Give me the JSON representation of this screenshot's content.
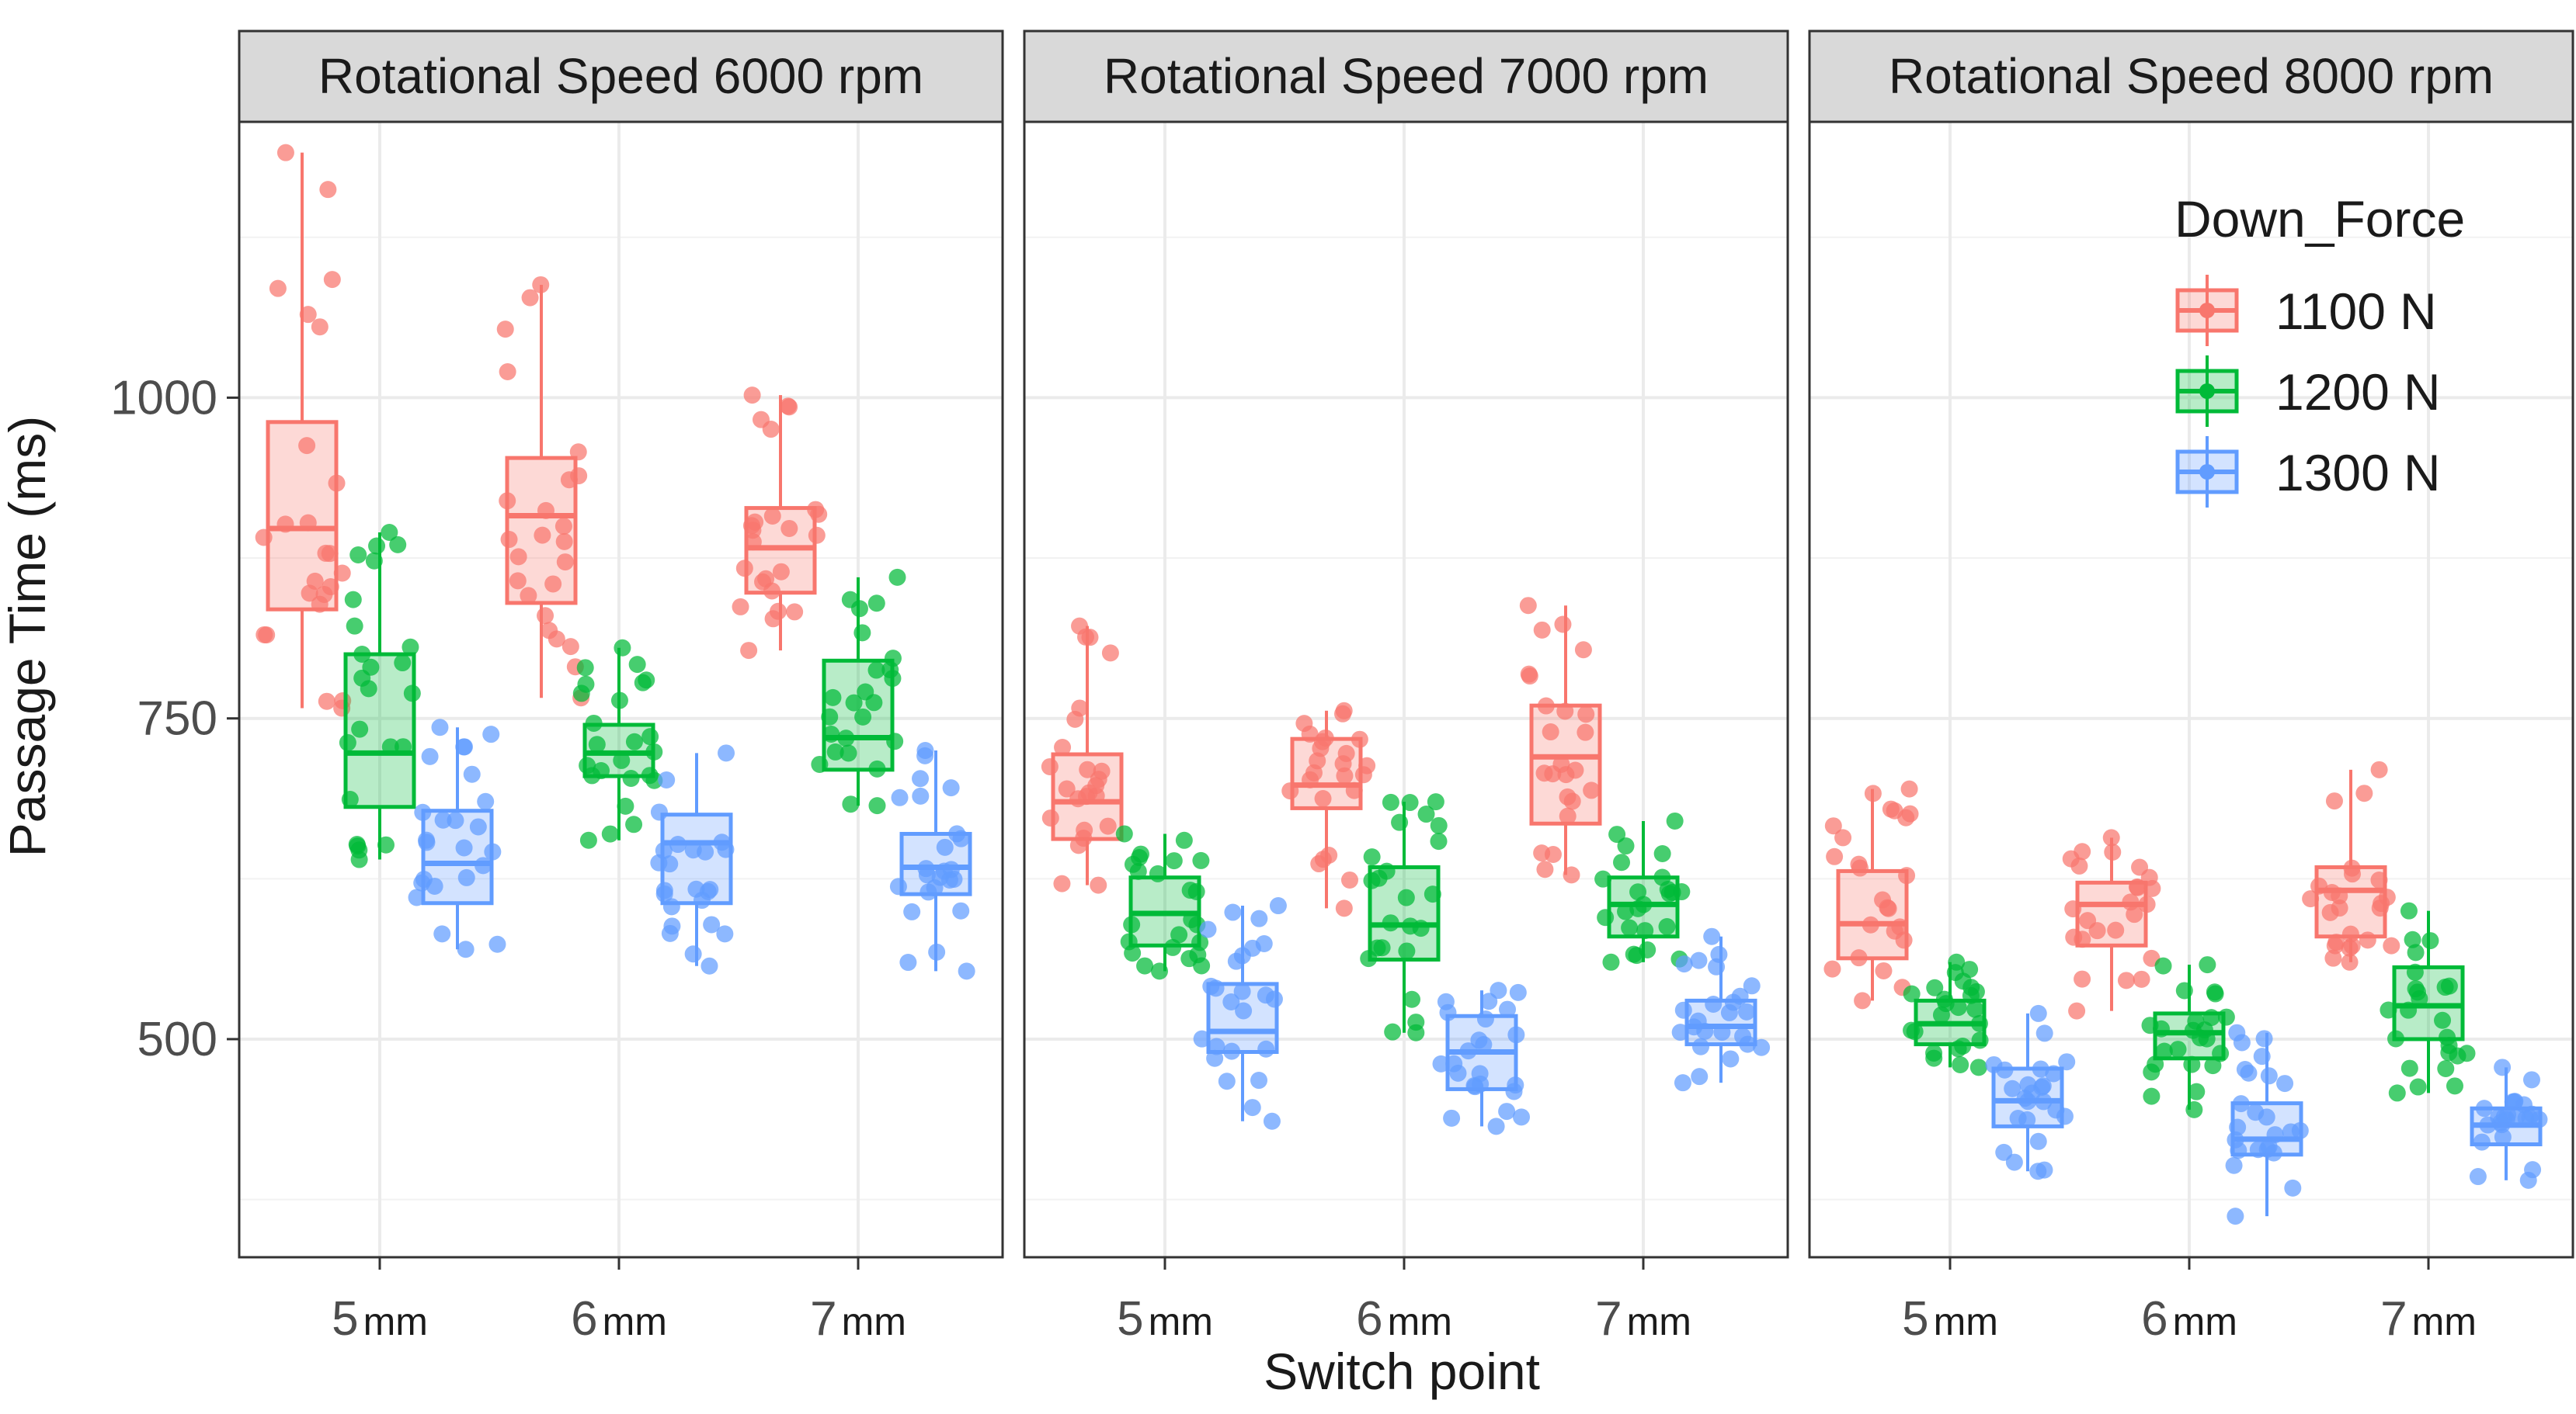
{
  "chart_data": {
    "type": "boxplot",
    "facet_variable": "Rotational Speed",
    "panels": [
      {
        "strip": "Rotational Speed 6000 rpm",
        "groups": [
          {
            "switch_point": "5mm",
            "force": "1100 N",
            "min": 758,
            "q1": 835,
            "median": 898,
            "q3": 981,
            "max": 1191
          },
          {
            "switch_point": "5mm",
            "force": "1200 N",
            "min": 640,
            "q1": 681,
            "median": 723,
            "q3": 800,
            "max": 895
          },
          {
            "switch_point": "5mm",
            "force": "1300 N",
            "min": 570,
            "q1": 606,
            "median": 637,
            "q3": 678,
            "max": 743
          },
          {
            "switch_point": "6 mm",
            "force": "1100 N",
            "min": 766,
            "q1": 840,
            "median": 908,
            "q3": 953,
            "max": 1088
          },
          {
            "switch_point": "6 mm",
            "force": "1200 N",
            "min": 655,
            "q1": 705,
            "median": 723,
            "q3": 745,
            "max": 805
          },
          {
            "switch_point": "6 mm",
            "force": "1300 N",
            "min": 557,
            "q1": 606,
            "median": 653,
            "q3": 675,
            "max": 723
          },
          {
            "switch_point": "7 mm",
            "force": "1100 N",
            "min": 803,
            "q1": 848,
            "median": 883,
            "q3": 914,
            "max": 1002
          },
          {
            "switch_point": "7 mm",
            "force": "1200 N",
            "min": 682,
            "q1": 710,
            "median": 735,
            "q3": 795,
            "max": 860
          },
          {
            "switch_point": "7 mm",
            "force": "1300 N",
            "min": 553,
            "q1": 613,
            "median": 634,
            "q3": 660,
            "max": 725
          }
        ]
      },
      {
        "strip": "Rotational Speed 7000 rpm",
        "groups": [
          {
            "switch_point": "5 mm",
            "force": "1100 N",
            "min": 620,
            "q1": 656,
            "median": 685,
            "q3": 722,
            "max": 822
          },
          {
            "switch_point": "5 mm",
            "force": "1200 N",
            "min": 553,
            "q1": 573,
            "median": 598,
            "q3": 626,
            "max": 660
          },
          {
            "switch_point": "5 mm",
            "force": "1300 N",
            "min": 436,
            "q1": 490,
            "median": 506,
            "q3": 543,
            "max": 604
          },
          {
            "switch_point": "6 mm",
            "force": "1100 N",
            "min": 602,
            "q1": 680,
            "median": 698,
            "q3": 734,
            "max": 756
          },
          {
            "switch_point": "6 mm",
            "force": "1200 N",
            "min": 505,
            "q1": 562,
            "median": 589,
            "q3": 634,
            "max": 685
          },
          {
            "switch_point": "6 mm",
            "force": "1300 N",
            "min": 432,
            "q1": 461,
            "median": 490,
            "q3": 518,
            "max": 538
          },
          {
            "switch_point": "7mm",
            "force": "1100 N",
            "min": 628,
            "q1": 668,
            "median": 720,
            "q3": 760,
            "max": 838
          },
          {
            "switch_point": "7mm",
            "force": "1200 N",
            "min": 560,
            "q1": 580,
            "median": 605,
            "q3": 626,
            "max": 670
          },
          {
            "switch_point": "7mm",
            "force": "1300 N",
            "min": 466,
            "q1": 496,
            "median": 510,
            "q3": 530,
            "max": 580
          }
        ]
      },
      {
        "strip": "Rotational Speed 8000 rpm",
        "groups": [
          {
            "switch_point": "5mm",
            "force": "1100 N",
            "min": 530,
            "q1": 563,
            "median": 590,
            "q3": 631,
            "max": 695
          },
          {
            "switch_point": "5mm",
            "force": "1200 N",
            "min": 478,
            "q1": 496,
            "median": 512,
            "q3": 530,
            "max": 560
          },
          {
            "switch_point": "5mm",
            "force": "1300 N",
            "min": 397,
            "q1": 432,
            "median": 452,
            "q3": 477,
            "max": 520
          },
          {
            "switch_point": "6mm",
            "force": "1100 N",
            "min": 522,
            "q1": 573,
            "median": 605,
            "q3": 622,
            "max": 657
          },
          {
            "switch_point": "6mm",
            "force": "1200 N",
            "min": 445,
            "q1": 485,
            "median": 505,
            "q3": 520,
            "max": 558
          },
          {
            "switch_point": "6mm",
            "force": "1300 N",
            "min": 362,
            "q1": 410,
            "median": 422,
            "q3": 450,
            "max": 505
          },
          {
            "switch_point": "7 mm",
            "force": "1100 N",
            "min": 560,
            "q1": 580,
            "median": 616,
            "q3": 634,
            "max": 710
          },
          {
            "switch_point": "7 mm",
            "force": "1200 N",
            "min": 458,
            "q1": 500,
            "median": 526,
            "q3": 556,
            "max": 600
          },
          {
            "switch_point": "7 mm",
            "force": "1300 N",
            "min": 390,
            "q1": 418,
            "median": 433,
            "q3": 446,
            "max": 478
          }
        ]
      }
    ],
    "x_tick_labels": [
      [
        {
          "num": "5",
          "unit": "mm"
        },
        {
          "num": "6",
          "unit": "mm"
        },
        {
          "num": "7",
          "unit": "mm"
        }
      ],
      [
        {
          "num": "5",
          "unit": "mm"
        },
        {
          "num": "6",
          "unit": "mm"
        },
        {
          "num": "7",
          "unit": "mm"
        }
      ],
      [
        {
          "num": "5",
          "unit": "mm"
        },
        {
          "num": "6",
          "unit": "mm"
        },
        {
          "num": "7",
          "unit": "mm"
        }
      ]
    ],
    "series": [
      {
        "name": "1100 N",
        "num": "1100",
        "unit": "N",
        "color": "#F8766D"
      },
      {
        "name": "1200 N",
        "num": "1200",
        "unit": "N",
        "color": "#00BA38"
      },
      {
        "name": "1300 N",
        "num": "1300",
        "unit": "N",
        "color": "#619CFF"
      }
    ],
    "legend_title": "Down_Force",
    "legend_position": "top-right",
    "xlabel": "Switch point",
    "ylabel": "Passage Time (ms)",
    "y_ticks": [
      500,
      750,
      1000
    ],
    "y_minor": [
      375,
      625,
      875,
      1125
    ],
    "ylim": [
      330,
      1215
    ],
    "grid": true
  }
}
